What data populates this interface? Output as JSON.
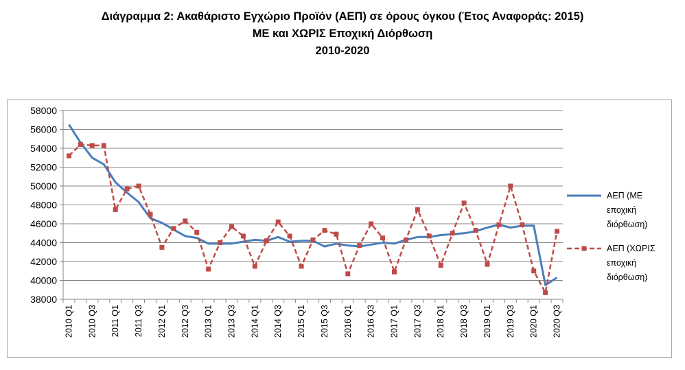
{
  "titles": {
    "line1": "Διάγραμμα 2: Ακαθάριστο Εγχώριο Προϊόν (ΑΕΠ) σε όρους όγκου (Έτος Αναφοράς: 2015)",
    "line2": "ΜΕ και ΧΩΡΙΣ Εποχική Διόρθωση",
    "line3": "2010-2020"
  },
  "chart_data": {
    "type": "line",
    "title": "Διάγραμμα 2: Ακαθάριστο Εγχώριο Προϊόν (ΑΕΠ) σε όρους όγκου (Έτος Αναφοράς: 2015) ΜΕ και ΧΩΡΙΣ Εποχική Διόρθωση 2010-2020",
    "xlabel": "",
    "ylabel": "",
    "ylim": [
      38000,
      58000
    ],
    "yticks": [
      38000,
      40000,
      42000,
      44000,
      46000,
      48000,
      50000,
      52000,
      54000,
      56000,
      58000
    ],
    "grid": true,
    "legend_position": "right",
    "categories": [
      "2010 Q1",
      "2010 Q2",
      "2010 Q3",
      "2010 Q4",
      "2011 Q1",
      "2011 Q2",
      "2011 Q3",
      "2011 Q4",
      "2012 Q1",
      "2012 Q2",
      "2012 Q3",
      "2012 Q4",
      "2013 Q1",
      "2013 Q2",
      "2013 Q3",
      "2013 Q4",
      "2014 Q1",
      "2014 Q2",
      "2014 Q3",
      "2014 Q4",
      "2015 Q1",
      "2015 Q2",
      "2015 Q3",
      "2015 Q4",
      "2016 Q1",
      "2016 Q2",
      "2016 Q3",
      "2016 Q4",
      "2017 Q1",
      "2017 Q2",
      "2017 Q3",
      "2017 Q4",
      "2018 Q1",
      "2018 Q2",
      "2018 Q3",
      "2018 Q4",
      "2019 Q1",
      "2019 Q2",
      "2019 Q3",
      "2019 Q4",
      "2020 Q1",
      "2020 Q2",
      "2020 Q3"
    ],
    "xtick_labels": [
      "2010 Q1",
      "2010 Q3",
      "2011 Q1",
      "2011 Q3",
      "2012 Q1",
      "2012 Q3",
      "2013 Q1",
      "2013 Q3",
      "2014 Q1",
      "2014 Q3",
      "2015 Q1",
      "2015 Q3",
      "2016 Q1",
      "2016 Q3",
      "2017 Q1",
      "2017 Q3",
      "2018 Q1",
      "2018 Q3",
      "2019 Q1",
      "2019 Q3",
      "2020 Q1",
      "2020 Q3"
    ],
    "series": [
      {
        "name": "ΑΕΠ (ΜΕ εποχική διόρθωση)",
        "legend_lines": [
          "ΑΕΠ (ΜΕ",
          "εποχική",
          "διόρθωση)"
        ],
        "color": "#4a7ebb",
        "style": "solid",
        "values": [
          56500,
          54600,
          53000,
          52300,
          50400,
          49300,
          48300,
          46600,
          46100,
          45400,
          44700,
          44500,
          43900,
          43900,
          43900,
          44100,
          44300,
          44200,
          44600,
          44100,
          44200,
          44200,
          43600,
          43900,
          43700,
          43600,
          43800,
          44000,
          43900,
          44300,
          44600,
          44600,
          44800,
          44900,
          45000,
          45200,
          45600,
          45900,
          45600,
          45800,
          45800,
          39500,
          40300
        ]
      },
      {
        "name": "ΑΕΠ (ΧΩΡΙΣ εποχική διόρθωση)",
        "legend_lines": [
          "ΑΕΠ (ΧΩΡΙΣ",
          "εποχική",
          "διόρθωση)"
        ],
        "color": "#be4b48",
        "style": "dashed",
        "marker": "square",
        "values": [
          53200,
          54400,
          54300,
          54300,
          47500,
          49700,
          50000,
          47000,
          43500,
          45500,
          46300,
          45100,
          41200,
          44000,
          45700,
          44700,
          41500,
          44200,
          46200,
          44700,
          41500,
          44300,
          45300,
          44900,
          40700,
          43700,
          46000,
          44500,
          40900,
          44300,
          47500,
          44700,
          41600,
          45000,
          48200,
          45300,
          41700,
          45900,
          50000,
          45900,
          41000,
          38700,
          45200
        ]
      }
    ]
  }
}
